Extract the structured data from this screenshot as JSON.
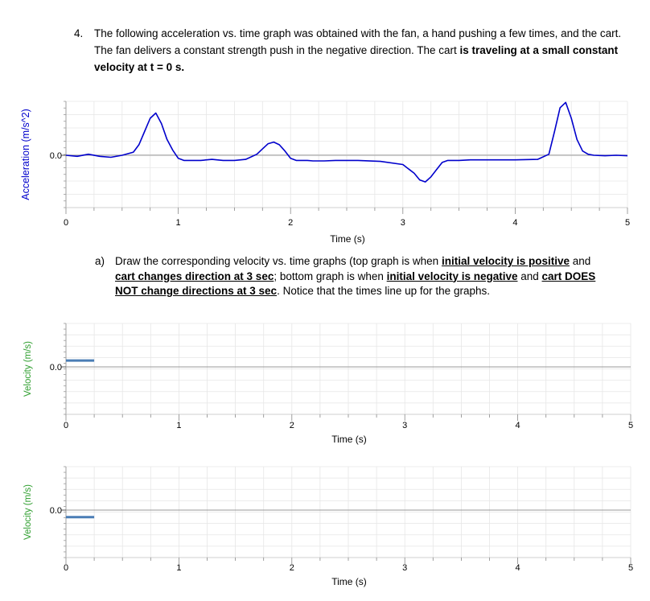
{
  "question": {
    "number": "4.",
    "text_1": "The following acceleration vs. time graph was obtained with the fan, a hand pushing a few times, and the cart.  The fan delivers a constant strength push in the negative direction.  The cart ",
    "text_bold": "is traveling at a small constant velocity at t = 0 s."
  },
  "part_a": {
    "label": "a)",
    "t1": "Draw the corresponding velocity vs. time graphs (top graph is when ",
    "u1": "initial velocity is positive",
    "t2": " and ",
    "u2": "cart changes direction at 3 sec",
    "t3": "; bottom graph is when ",
    "u3": "initial velocity is negative",
    "t4": " and ",
    "u4": "cart DOES NOT change directions at 3 sec",
    "t5": ".  Notice that the times line up for the graphs."
  },
  "chart_data": [
    {
      "type": "line",
      "ylabel": "Acceleration (m/s^2)",
      "xlabel": "Time (s)",
      "xlim": [
        0,
        5
      ],
      "ylim": [
        -1.0,
        1.0
      ],
      "x_ticks": [
        "0",
        "1",
        "2",
        "3",
        "4",
        "5"
      ],
      "y_tick": "0.0",
      "grid": true,
      "line_color": "#0000cc",
      "series": [
        {
          "x": [
            0,
            0.1,
            0.2,
            0.3,
            0.4,
            0.5,
            0.6,
            0.65,
            0.7,
            0.75,
            0.8,
            0.85,
            0.9,
            0.95,
            1.0,
            1.05,
            1.1,
            1.2,
            1.3,
            1.4,
            1.5,
            1.6,
            1.7,
            1.75,
            1.8,
            1.85,
            1.9,
            1.95,
            2.0,
            2.05,
            2.1,
            2.15,
            2.2,
            2.3,
            2.4,
            2.6,
            2.8,
            3.0,
            3.1,
            3.15,
            3.2,
            3.25,
            3.3,
            3.35,
            3.4,
            3.45,
            3.5,
            3.6,
            3.8,
            4.0,
            4.2,
            4.3,
            4.35,
            4.4,
            4.45,
            4.5,
            4.55,
            4.6,
            4.65,
            4.7,
            4.8,
            4.9,
            5.0
          ],
          "y": [
            0.0,
            -0.02,
            0.02,
            -0.02,
            -0.04,
            0.0,
            0.06,
            0.2,
            0.45,
            0.7,
            0.8,
            0.6,
            0.3,
            0.1,
            -0.06,
            -0.1,
            -0.1,
            -0.1,
            -0.08,
            -0.1,
            -0.1,
            -0.08,
            0.02,
            0.12,
            0.22,
            0.25,
            0.2,
            0.08,
            -0.06,
            -0.1,
            -0.1,
            -0.1,
            -0.11,
            -0.11,
            -0.1,
            -0.1,
            -0.12,
            -0.18,
            -0.35,
            -0.48,
            -0.52,
            -0.42,
            -0.28,
            -0.14,
            -0.1,
            -0.1,
            -0.1,
            -0.09,
            -0.09,
            -0.09,
            -0.08,
            0.02,
            0.45,
            0.9,
            1.0,
            0.7,
            0.3,
            0.08,
            0.02,
            0.0,
            -0.01,
            0.0,
            -0.01
          ]
        }
      ]
    },
    {
      "type": "line",
      "ylabel": "Velocity (m/s)",
      "xlabel": "Time (s)",
      "xlim": [
        0,
        5
      ],
      "ylim": [
        -1.0,
        1.0
      ],
      "x_ticks": [
        "0",
        "1",
        "2",
        "3",
        "4",
        "5"
      ],
      "y_tick": "0.0",
      "grid": true,
      "line_color": "#4a7db5",
      "series": [
        {
          "x": [
            0.0,
            0.25
          ],
          "y": [
            0.15,
            0.15
          ]
        }
      ]
    },
    {
      "type": "line",
      "ylabel": "Velocity (m/s)",
      "xlabel": "Time (s)",
      "xlim": [
        0,
        5
      ],
      "ylim": [
        -1.0,
        1.0
      ],
      "x_ticks": [
        "0",
        "1",
        "2",
        "3",
        "4",
        "5"
      ],
      "y_tick": "0.0",
      "grid": true,
      "line_color": "#4a7db5",
      "series": [
        {
          "x": [
            0.0,
            0.25
          ],
          "y": [
            -0.15,
            -0.15
          ]
        }
      ]
    }
  ],
  "colors": {
    "accel_label": "#0000cc",
    "velocity_label": "#2e9e2e"
  }
}
